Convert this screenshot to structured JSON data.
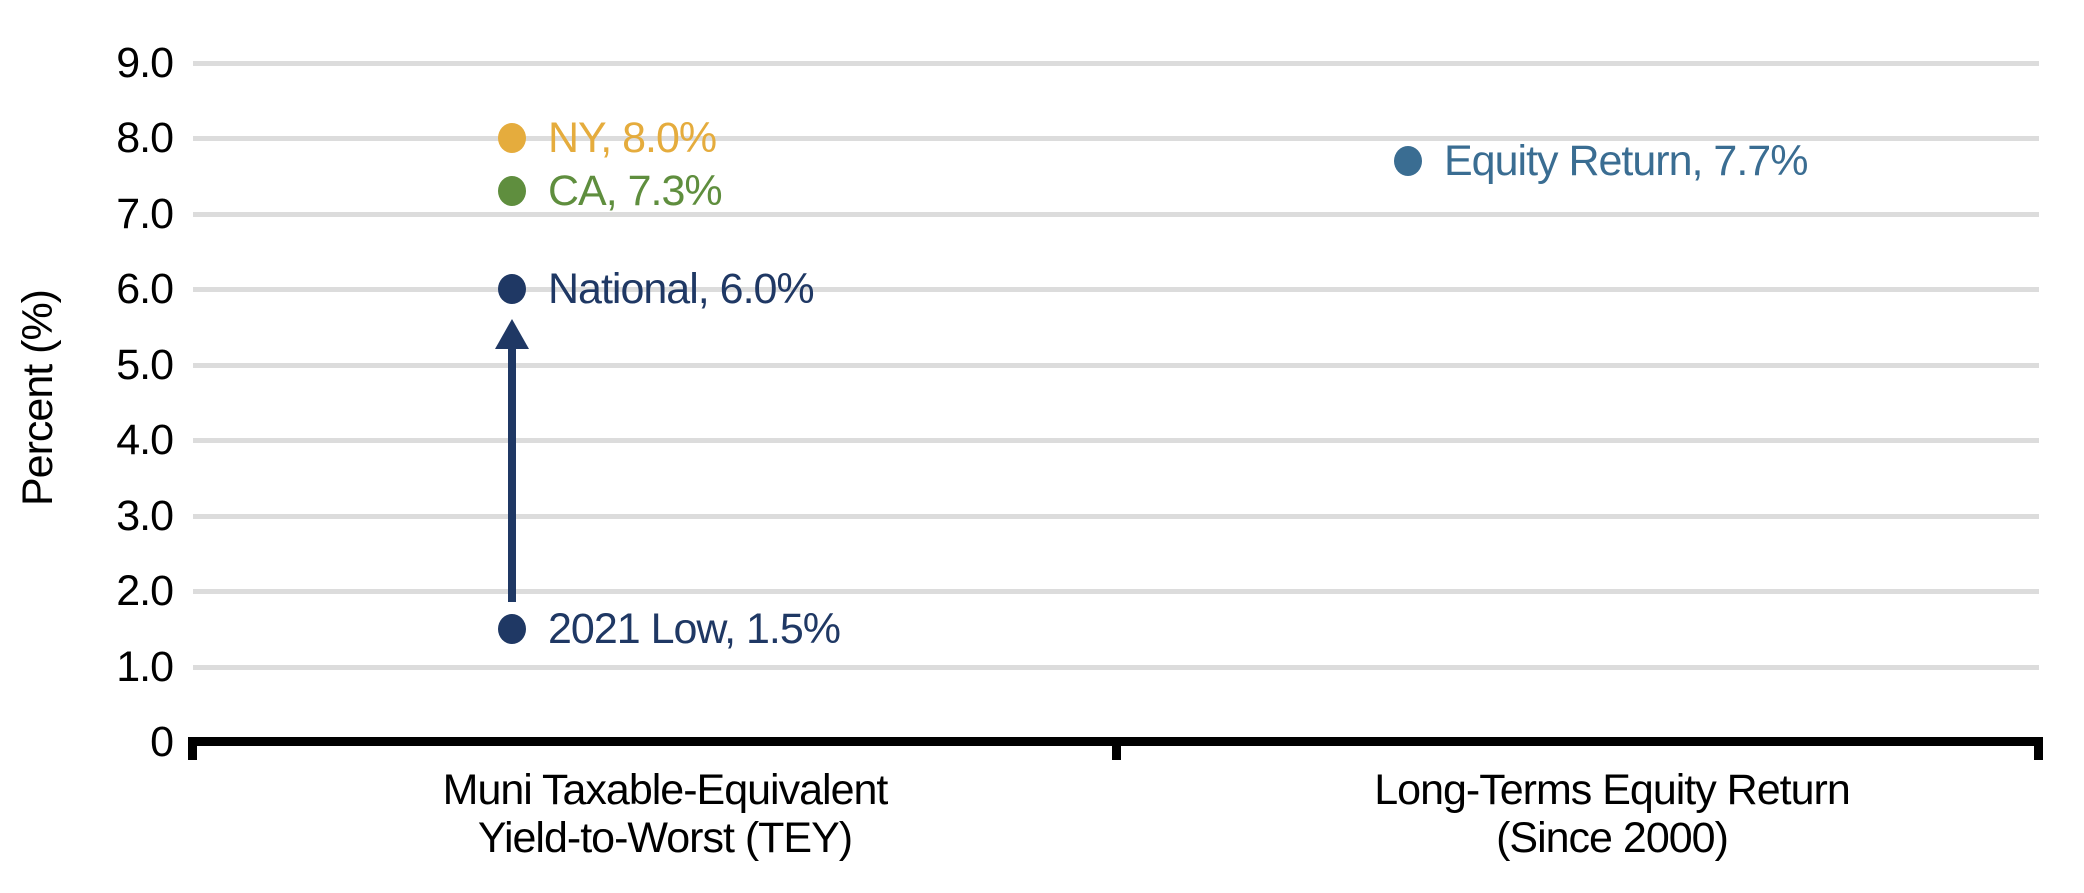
{
  "chart_data": {
    "type": "scatter",
    "title": "",
    "ylabel": "Percent (%)",
    "ylim": [
      0,
      9.0
    ],
    "grid": true,
    "gridline_color": "#DCDCDC",
    "axis_color": "#000000",
    "background_color": "#FFFFFF",
    "legend": "none (labels drawn next to points)",
    "yticks": [
      {
        "label": "9.0",
        "value": 9.0
      },
      {
        "label": "8.0",
        "value": 8.0
      },
      {
        "label": "7.0",
        "value": 7.0
      },
      {
        "label": "6.0",
        "value": 6.0
      },
      {
        "label": "5.0",
        "value": 5.0
      },
      {
        "label": "4.0",
        "value": 4.0
      },
      {
        "label": "3.0",
        "value": 3.0
      },
      {
        "label": "2.0",
        "value": 2.0
      },
      {
        "label": "1.0",
        "value": 1.0
      },
      {
        "label": "0",
        "value": 0
      }
    ],
    "categories": [
      {
        "line1": "Muni Taxable-Equivalent",
        "line2": "Yield-to-Worst (TEY)"
      },
      {
        "line1": "Long-Terms Equity Return",
        "line2": "(Since 2000)"
      }
    ],
    "points": [
      {
        "name": "NY",
        "column": 0,
        "value": 8.0,
        "label": "NY, 8.0%",
        "color": "#E5AC3D"
      },
      {
        "name": "CA",
        "column": 0,
        "value": 7.3,
        "label": "CA, 7.3%",
        "color": "#5F8E3E"
      },
      {
        "name": "National",
        "column": 0,
        "value": 6.0,
        "label": "National, 6.0%",
        "color": "#1F3864"
      },
      {
        "name": "2021 Low",
        "column": 0,
        "value": 1.5,
        "label": "2021 Low, 1.5%",
        "color": "#1F3864"
      },
      {
        "name": "Equity Return",
        "column": 1,
        "value": 7.7,
        "label": "Equity Return, 7.7%",
        "color": "#3A6D92"
      }
    ],
    "annotations": [
      {
        "type": "arrow",
        "column": 0,
        "direction": "up",
        "from_value": 1.85,
        "to_value": 5.6,
        "color": "#1F3864",
        "meaning": "increase from 2021 Low (1.5%) up toward National (6.0%)"
      }
    ]
  }
}
